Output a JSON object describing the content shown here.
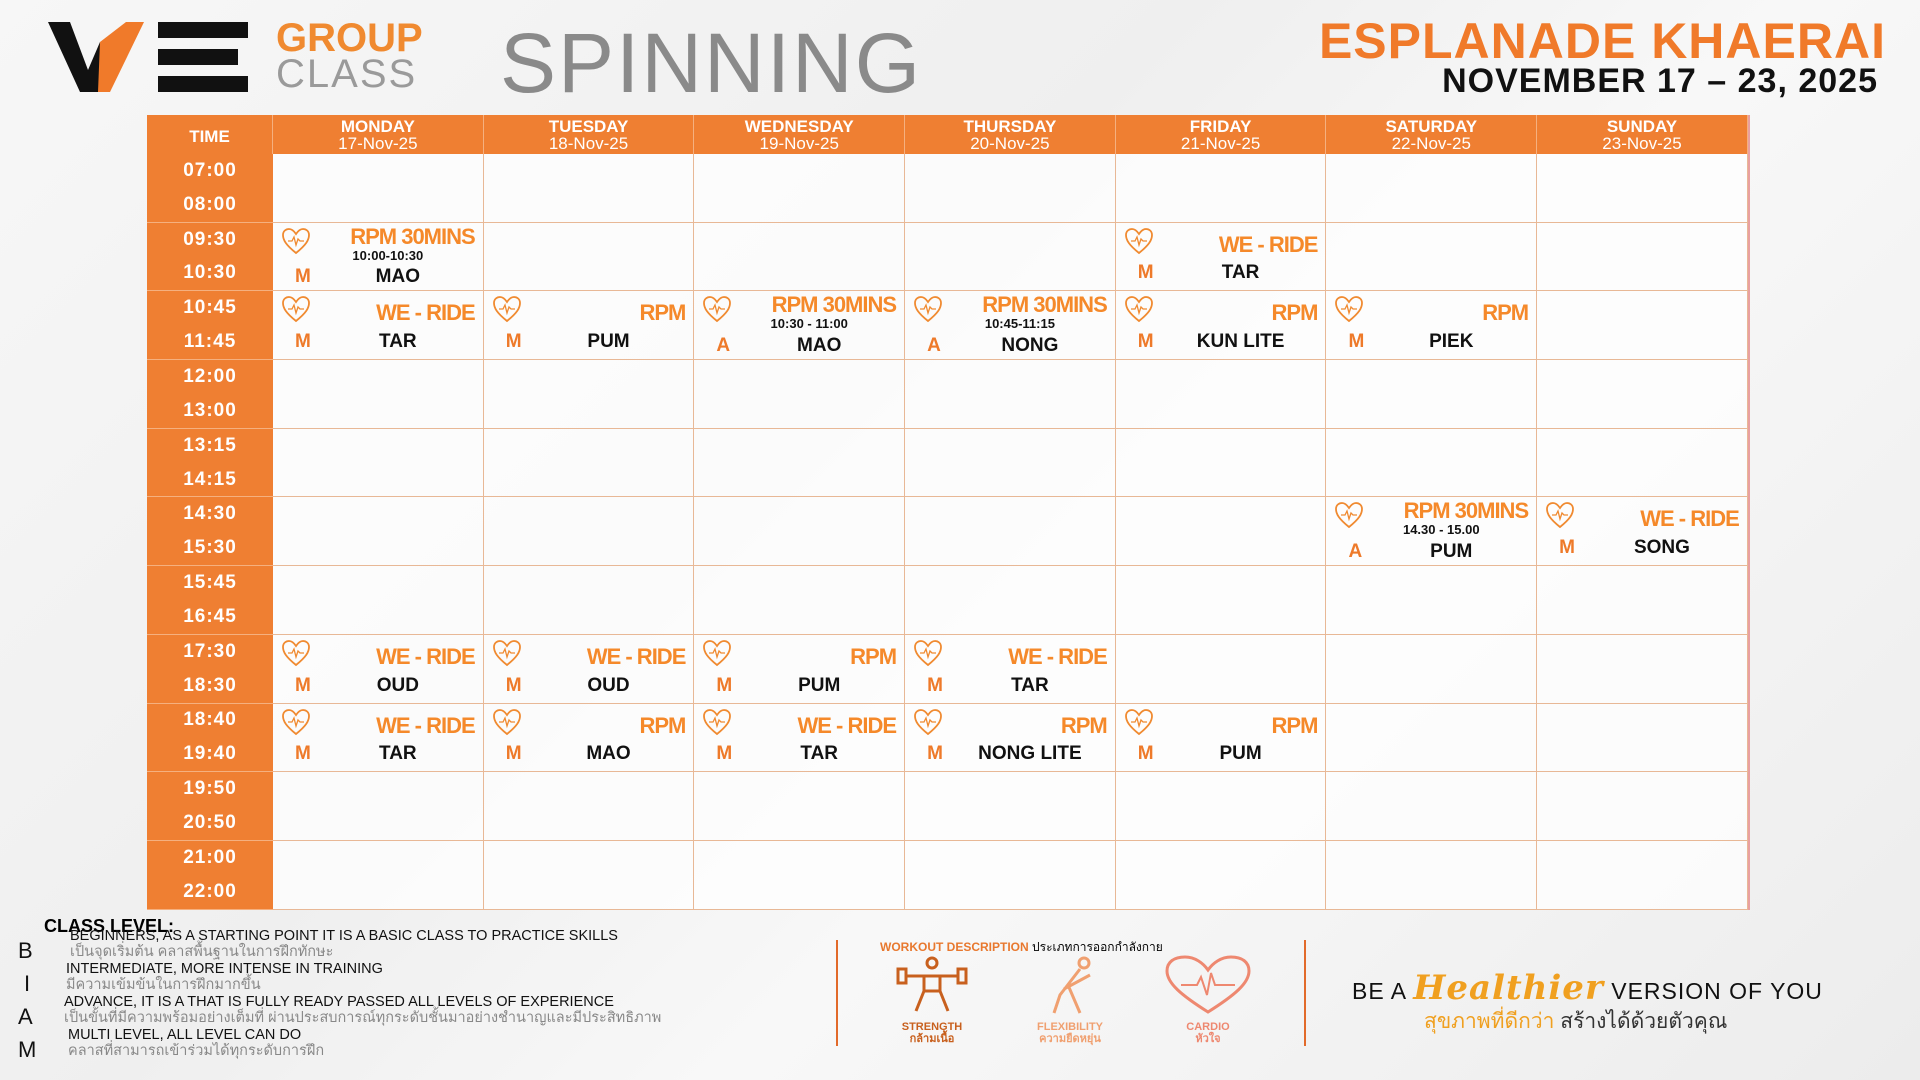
{
  "brand": {
    "logo": "WE",
    "group": "GROUP",
    "class": "CLASS",
    "spinning": "SPINNING"
  },
  "venue": "ESPLANADE KHAERAI",
  "date_range": "NOVEMBER 17 – 23, 2025",
  "colors": {
    "accent": "#ef7f32",
    "class_name": "#f5892a"
  },
  "schedule": {
    "time_header": "TIME",
    "days": [
      {
        "name": "MONDAY",
        "date": "17-Nov-25"
      },
      {
        "name": "TUESDAY",
        "date": "18-Nov-25"
      },
      {
        "name": "WEDNESDAY",
        "date": "19-Nov-25"
      },
      {
        "name": "THURSDAY",
        "date": "20-Nov-25"
      },
      {
        "name": "FRIDAY",
        "date": "21-Nov-25"
      },
      {
        "name": "SATURDAY",
        "date": "22-Nov-25"
      },
      {
        "name": "SUNDAY",
        "date": "23-Nov-25"
      }
    ],
    "rows": [
      {
        "start": "07:00",
        "end": "08:00",
        "cells": [
          null,
          null,
          null,
          null,
          null,
          null,
          null
        ]
      },
      {
        "start": "09:30",
        "end": "10:30",
        "cells": [
          {
            "name": "RPM 30MINS",
            "time": "10:00-10:30",
            "level": "M",
            "trainer": "MAO",
            "icon": "cardio-heart-icon"
          },
          null,
          null,
          null,
          {
            "name": "WE - RIDE",
            "level": "M",
            "trainer": "TAR",
            "icon": "cardio-heart-icon"
          },
          null,
          null
        ]
      },
      {
        "start": "10:45",
        "end": "11:45",
        "cells": [
          {
            "name": "WE - RIDE",
            "level": "M",
            "trainer": "TAR",
            "icon": "cardio-heart-icon"
          },
          {
            "name": "RPM",
            "level": "M",
            "trainer": "PUM",
            "icon": "cardio-heart-icon"
          },
          {
            "name": "RPM 30MINS",
            "time": "10:30 - 11:00",
            "level": "A",
            "trainer": "MAO",
            "icon": "cardio-heart-icon"
          },
          {
            "name": "RPM 30MINS",
            "time": "10:45-11:15",
            "level": "A",
            "trainer": "NONG",
            "icon": "cardio-heart-icon"
          },
          {
            "name": "RPM",
            "level": "M",
            "trainer": "KUN LITE",
            "icon": "cardio-heart-icon"
          },
          {
            "name": "RPM",
            "level": "M",
            "trainer": "PIEK",
            "icon": "cardio-heart-icon"
          },
          null
        ]
      },
      {
        "start": "12:00",
        "end": "13:00",
        "cells": [
          null,
          null,
          null,
          null,
          null,
          null,
          null
        ]
      },
      {
        "start": "13:15",
        "end": "14:15",
        "cells": [
          null,
          null,
          null,
          null,
          null,
          null,
          null
        ]
      },
      {
        "start": "14:30",
        "end": "15:30",
        "cells": [
          null,
          null,
          null,
          null,
          null,
          {
            "name": "RPM 30MINS",
            "time": "14.30 - 15.00",
            "level": "A",
            "trainer": "PUM",
            "icon": "cardio-heart-icon"
          },
          {
            "name": "WE - RIDE",
            "level": "M",
            "trainer": "SONG",
            "icon": "cardio-heart-icon"
          }
        ]
      },
      {
        "start": "15:45",
        "end": "16:45",
        "cells": [
          null,
          null,
          null,
          null,
          null,
          null,
          null
        ]
      },
      {
        "start": "17:30",
        "end": "18:30",
        "cells": [
          {
            "name": "WE - RIDE",
            "level": "M",
            "trainer": "OUD",
            "icon": "cardio-heart-icon"
          },
          {
            "name": "WE - RIDE",
            "level": "M",
            "trainer": "OUD",
            "icon": "cardio-heart-icon"
          },
          {
            "name": "RPM",
            "level": "M",
            "trainer": "PUM",
            "icon": "cardio-heart-icon"
          },
          {
            "name": "WE - RIDE",
            "level": "M",
            "trainer": "TAR",
            "icon": "cardio-heart-icon"
          },
          null,
          null,
          null
        ]
      },
      {
        "start": "18:40",
        "end": "19:40",
        "cells": [
          {
            "name": "WE - RIDE",
            "level": "M",
            "trainer": "TAR",
            "icon": "cardio-heart-icon"
          },
          {
            "name": "RPM",
            "level": "M",
            "trainer": "MAO",
            "icon": "cardio-heart-icon"
          },
          {
            "name": "WE - RIDE",
            "level": "M",
            "trainer": "TAR",
            "icon": "cardio-heart-icon"
          },
          {
            "name": "RPM",
            "level": "M",
            "trainer": "NONG LITE",
            "icon": "cardio-heart-icon"
          },
          {
            "name": "RPM",
            "level": "M",
            "trainer": "PUM",
            "icon": "cardio-heart-icon"
          },
          null,
          null
        ]
      },
      {
        "start": "19:50",
        "end": "20:50",
        "cells": [
          null,
          null,
          null,
          null,
          null,
          null,
          null
        ]
      },
      {
        "start": "21:00",
        "end": "22:00",
        "cells": [
          null,
          null,
          null,
          null,
          null,
          null,
          null
        ]
      }
    ]
  },
  "class_level": {
    "title": "CLASS LEVEL:",
    "levels": [
      {
        "letter": "B",
        "en": "BEGINNERS, AS A STARTING POINT IT IS A BASIC CLASS TO PRACTICE SKILLS",
        "th": "เป็นจุดเริ่มต้น คลาสพื้นฐานในการฝึกทักษะ"
      },
      {
        "letter": "I",
        "en": "INTERMEDIATE, MORE INTENSE IN TRAINING",
        "th": "มีความเข้มข้นในการฝึกมากขึ้น"
      },
      {
        "letter": "A",
        "en": "ADVANCE, IT IS A THAT IS FULLY READY PASSED ALL LEVELS OF EXPERIENCE",
        "th": "เป็นขั้นที่มีความพร้อมอย่างเต็มที่ ผ่านประสบการณ์ทุกระดับชั้นมาอย่างชำนาญและมีประสิทธิภาพ"
      },
      {
        "letter": "M",
        "en": "MULTI LEVEL, ALL LEVEL CAN DO",
        "th": "คลาสที่สามารถเข้าร่วมได้ทุกระดับการฝึก"
      }
    ]
  },
  "workout": {
    "title_en": "WORKOUT DESCRIPTION",
    "title_th": "ประเภทการออกกำลังกาย",
    "types": [
      {
        "en": "STRENGTH",
        "th": "กล้ามเนื้อ",
        "icon": "weightlifter-icon",
        "color": "#c8601e"
      },
      {
        "en": "FLEXIBILITY",
        "th": "ความยืดหยุ่น",
        "icon": "stretching-icon",
        "color": "#f0a070"
      },
      {
        "en": "CARDIO",
        "th": "หัวใจ",
        "icon": "heartbeat-icon",
        "color": "#ee8870"
      }
    ]
  },
  "slogan": {
    "pre": "BE A",
    "script": "Healthier",
    "post": "VERSION OF YOU",
    "th_highlight": "สุขภาพที่ดีกว่า",
    "th_rest": "สร้างได้ด้วยตัวคุณ"
  }
}
